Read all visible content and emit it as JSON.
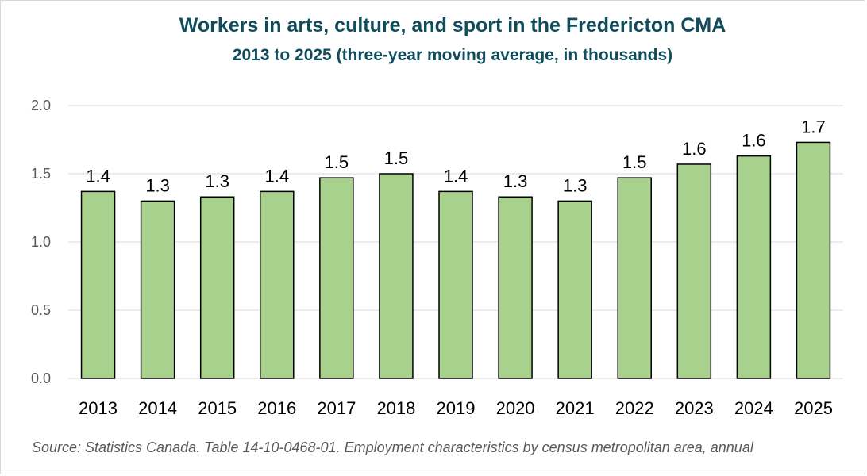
{
  "chart_data": {
    "type": "bar",
    "title": "Workers in arts, culture, and sport in the Fredericton CMA",
    "subtitle": "2013 to 2025 (three-year moving average,  in thousands)",
    "categories": [
      "2013",
      "2014",
      "2015",
      "2016",
      "2017",
      "2018",
      "2019",
      "2020",
      "2021",
      "2022",
      "2023",
      "2024",
      "2025"
    ],
    "values": [
      1.37,
      1.3,
      1.33,
      1.37,
      1.47,
      1.5,
      1.37,
      1.33,
      1.3,
      1.47,
      1.57,
      1.63,
      1.73
    ],
    "data_labels": [
      "1.4",
      "1.3",
      "1.3",
      "1.4",
      "1.5",
      "1.5",
      "1.4",
      "1.3",
      "1.3",
      "1.5",
      "1.6",
      "1.6",
      "1.7"
    ],
    "y_ticks": [
      "0.0",
      "0.5",
      "1.0",
      "1.5",
      "2.0"
    ],
    "ylim": [
      0,
      2.0
    ],
    "xlabel": "",
    "ylabel": "",
    "grid": true,
    "legend": "none",
    "bar_color": "#a9d18e",
    "bar_outline": "#000000",
    "source": "Source: Statistics Canada. Table 14-10-0468-01. Employment characteristics by census metropolitan area, annual"
  },
  "colors": {
    "title": "#0f4c5c",
    "gridline": "#d9d9d9",
    "axis_text": "#595959",
    "label_text": "#000000"
  }
}
